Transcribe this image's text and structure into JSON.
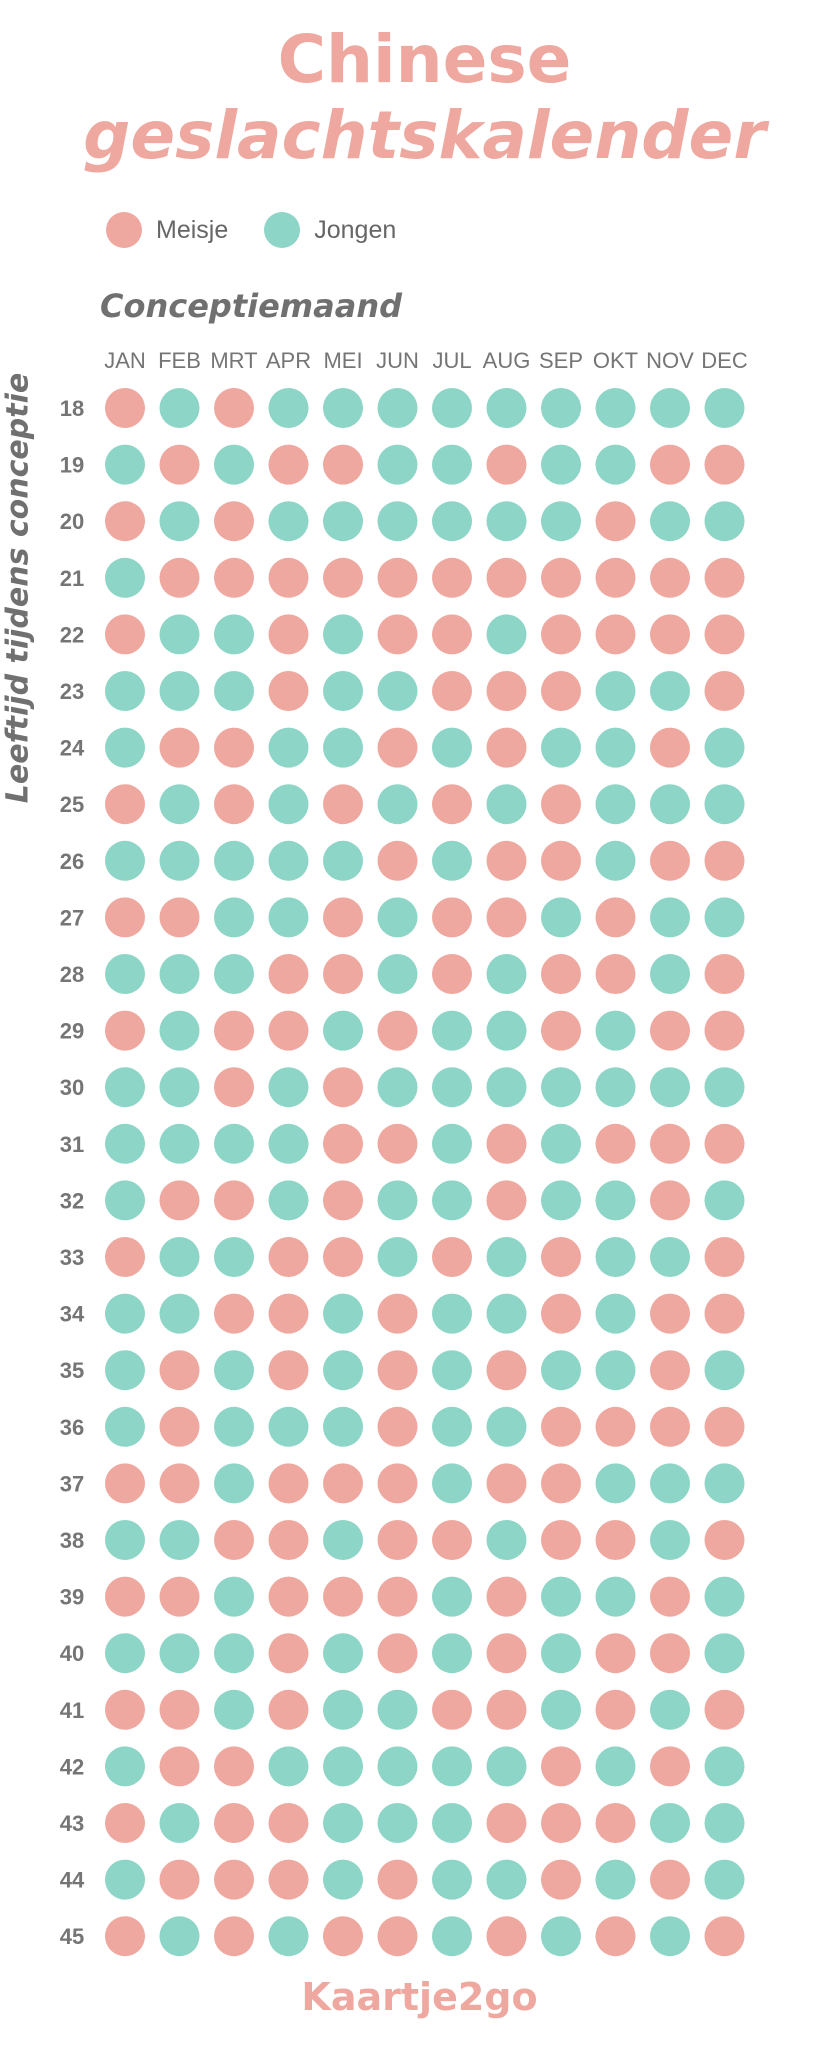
{
  "title": {
    "line1": "Chinese",
    "line2": "geslachtskalender"
  },
  "legend": {
    "girl_label": "Meisje",
    "boy_label": "Jongen"
  },
  "colors": {
    "girl": "#eea89f",
    "boy": "#8dd5c6",
    "title": "#eea89f",
    "label": "#757575"
  },
  "brand": "Kaartje2go",
  "chart_data": {
    "type": "heatmap",
    "title": "Chinese geslachtskalender",
    "xlabel": "Conceptiemaand",
    "ylabel": "Leeftijd tijdens conceptie",
    "encoding": {
      "M": "Meisje",
      "J": "Jongen"
    },
    "months": [
      "JAN",
      "FEB",
      "MRT",
      "APR",
      "MEI",
      "JUN",
      "JUL",
      "AUG",
      "SEP",
      "OKT",
      "NOV",
      "DEC"
    ],
    "ages": [
      18,
      19,
      20,
      21,
      22,
      23,
      24,
      25,
      26,
      27,
      28,
      29,
      30,
      31,
      32,
      33,
      34,
      35,
      36,
      37,
      38,
      39,
      40,
      41,
      42,
      43,
      44,
      45
    ],
    "rows": [
      [
        "M",
        "J",
        "M",
        "J",
        "J",
        "J",
        "J",
        "J",
        "J",
        "J",
        "J",
        "J"
      ],
      [
        "J",
        "M",
        "J",
        "M",
        "M",
        "J",
        "J",
        "M",
        "J",
        "J",
        "M",
        "M"
      ],
      [
        "M",
        "J",
        "M",
        "J",
        "J",
        "J",
        "J",
        "J",
        "J",
        "M",
        "J",
        "J"
      ],
      [
        "J",
        "M",
        "M",
        "M",
        "M",
        "M",
        "M",
        "M",
        "M",
        "M",
        "M",
        "M"
      ],
      [
        "M",
        "J",
        "J",
        "M",
        "J",
        "M",
        "M",
        "J",
        "M",
        "M",
        "M",
        "M"
      ],
      [
        "J",
        "J",
        "J",
        "M",
        "J",
        "J",
        "M",
        "M",
        "M",
        "J",
        "J",
        "M"
      ],
      [
        "J",
        "M",
        "M",
        "J",
        "J",
        "M",
        "J",
        "M",
        "J",
        "J",
        "M",
        "J"
      ],
      [
        "M",
        "J",
        "M",
        "J",
        "M",
        "J",
        "M",
        "J",
        "M",
        "J",
        "J",
        "J"
      ],
      [
        "J",
        "J",
        "J",
        "J",
        "J",
        "M",
        "J",
        "M",
        "M",
        "J",
        "M",
        "M"
      ],
      [
        "M",
        "M",
        "J",
        "J",
        "M",
        "J",
        "M",
        "M",
        "J",
        "M",
        "J",
        "J"
      ],
      [
        "J",
        "J",
        "J",
        "M",
        "M",
        "J",
        "M",
        "J",
        "M",
        "M",
        "J",
        "M"
      ],
      [
        "M",
        "J",
        "M",
        "M",
        "J",
        "M",
        "J",
        "J",
        "M",
        "J",
        "M",
        "M"
      ],
      [
        "J",
        "J",
        "M",
        "J",
        "M",
        "J",
        "J",
        "J",
        "J",
        "J",
        "J",
        "J"
      ],
      [
        "J",
        "J",
        "J",
        "J",
        "M",
        "M",
        "J",
        "M",
        "J",
        "M",
        "M",
        "M"
      ],
      [
        "J",
        "M",
        "M",
        "J",
        "M",
        "J",
        "J",
        "M",
        "J",
        "J",
        "M",
        "J"
      ],
      [
        "M",
        "J",
        "J",
        "M",
        "M",
        "J",
        "M",
        "J",
        "M",
        "J",
        "J",
        "M"
      ],
      [
        "J",
        "J",
        "M",
        "M",
        "J",
        "M",
        "J",
        "J",
        "M",
        "J",
        "M",
        "M"
      ],
      [
        "J",
        "M",
        "J",
        "M",
        "J",
        "M",
        "J",
        "M",
        "J",
        "J",
        "M",
        "J"
      ],
      [
        "J",
        "M",
        "J",
        "J",
        "J",
        "M",
        "J",
        "J",
        "M",
        "M",
        "M",
        "M"
      ],
      [
        "M",
        "M",
        "J",
        "M",
        "M",
        "M",
        "J",
        "M",
        "M",
        "J",
        "J",
        "J"
      ],
      [
        "J",
        "J",
        "M",
        "M",
        "J",
        "M",
        "M",
        "J",
        "M",
        "M",
        "J",
        "M"
      ],
      [
        "M",
        "M",
        "J",
        "M",
        "M",
        "M",
        "J",
        "M",
        "J",
        "J",
        "M",
        "J"
      ],
      [
        "J",
        "J",
        "J",
        "M",
        "J",
        "M",
        "J",
        "M",
        "J",
        "M",
        "M",
        "J"
      ],
      [
        "M",
        "M",
        "J",
        "M",
        "J",
        "J",
        "M",
        "M",
        "J",
        "M",
        "J",
        "M"
      ],
      [
        "J",
        "M",
        "M",
        "J",
        "J",
        "J",
        "J",
        "J",
        "M",
        "J",
        "M",
        "J"
      ],
      [
        "M",
        "J",
        "M",
        "M",
        "J",
        "J",
        "J",
        "M",
        "M",
        "M",
        "J",
        "J"
      ],
      [
        "J",
        "M",
        "M",
        "M",
        "J",
        "M",
        "J",
        "J",
        "M",
        "J",
        "M",
        "J"
      ],
      [
        "M",
        "J",
        "M",
        "J",
        "M",
        "M",
        "J",
        "M",
        "J",
        "M",
        "J",
        "M"
      ]
    ]
  }
}
